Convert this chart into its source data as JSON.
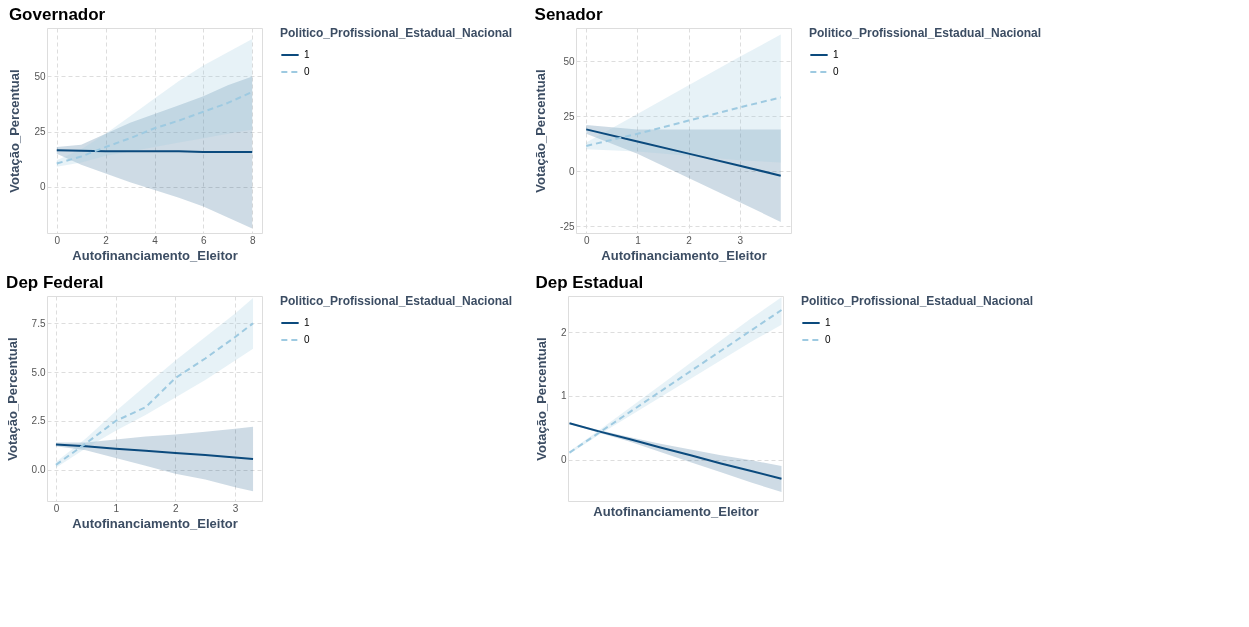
{
  "chart_data": [
    {
      "type": "line",
      "title": "Governador",
      "xlabel": "Autofinanciamento_Eleitor",
      "ylabel": "Votação_Percentual",
      "legend_title": "Politico_Profissional_Estadual_Nacional",
      "legend": "right",
      "grid": true,
      "xlim": [
        -0.4,
        8.4
      ],
      "xticks": [
        0,
        2,
        4,
        6,
        8
      ],
      "ylim": [
        -21,
        72
      ],
      "yticks": [
        0,
        25,
        50
      ],
      "x": [
        0,
        1,
        2,
        3,
        4,
        5,
        6,
        7,
        8
      ],
      "series": [
        {
          "name": "1",
          "color": "#0b4a7d",
          "line_style": "solid",
          "values": [
            16.5,
            16.3,
            16.1,
            16.1,
            16.1,
            16.1,
            15.8,
            15.8,
            15.8
          ],
          "lower": [
            15,
            10,
            6,
            2,
            -1.5,
            -5,
            -9,
            -14,
            -19
          ],
          "upper": [
            18,
            19,
            24,
            29,
            33,
            37,
            41,
            46,
            50
          ]
        },
        {
          "name": "0",
          "color": "#9ecae1",
          "line_style": "dashed",
          "values": [
            10.5,
            13.7,
            18,
            22,
            26.5,
            30,
            34,
            38,
            43
          ],
          "lower": [
            9,
            11,
            14,
            16,
            18,
            20,
            22,
            24,
            26
          ],
          "upper": [
            12,
            17,
            24,
            32,
            40,
            48,
            55,
            61,
            67
          ]
        }
      ]
    },
    {
      "type": "line",
      "title": "Senador",
      "xlabel": "Autofinanciamento_Eleitor",
      "ylabel": "Votação_Percentual",
      "legend_title": "Politico_Profissional_Estadual_Nacional",
      "legend": "right",
      "grid": true,
      "xlim": [
        -0.2,
        4.0
      ],
      "xticks": [
        0,
        1,
        2,
        3
      ],
      "ylim": [
        -28,
        65
      ],
      "yticks": [
        -25,
        0,
        25,
        50
      ],
      "x": [
        0,
        1,
        2,
        3,
        3.8
      ],
      "series": [
        {
          "name": "1",
          "color": "#0b4a7d",
          "line_style": "solid",
          "values": [
            19,
            13.5,
            8,
            2.5,
            -2
          ],
          "lower": [
            17,
            8,
            -3,
            -14,
            -23
          ],
          "upper": [
            21,
            19,
            19,
            19,
            19
          ]
        },
        {
          "name": "0",
          "color": "#9ecae1",
          "line_style": "dashed",
          "values": [
            11.5,
            17,
            23,
            29,
            33.5
          ],
          "lower": [
            10,
            9,
            7,
            5,
            4
          ],
          "upper": [
            13,
            26,
            39,
            52,
            62
          ]
        }
      ]
    },
    {
      "type": "line",
      "title": "Dep Federal",
      "xlabel": "Autofinanciamento_Eleitor",
      "ylabel": "Votação_Percentual",
      "legend_title": "Politico_Profissional_Estadual_Nacional",
      "legend": "right",
      "grid": true,
      "xlim": [
        -0.15,
        3.45
      ],
      "xticks": [
        0,
        1,
        2,
        3
      ],
      "ylim": [
        -1.6,
        8.9
      ],
      "yticks": [
        {
          "value": 0,
          "label": "0.0"
        },
        2.5,
        {
          "value": 5,
          "label": "5.0"
        },
        7.5
      ],
      "x": [
        0,
        0.5,
        1,
        1.5,
        2,
        2.5,
        3,
        3.3
      ],
      "series": [
        {
          "name": "1",
          "color": "#0b4a7d",
          "line_style": "solid",
          "values": [
            1.3,
            1.2,
            1.07,
            0.97,
            0.86,
            0.75,
            0.63,
            0.55
          ],
          "lower": [
            1.2,
            1.0,
            0.6,
            0.2,
            -0.2,
            -0.5,
            -0.9,
            -1.1
          ],
          "upper": [
            1.4,
            1.4,
            1.55,
            1.7,
            1.8,
            1.95,
            2.1,
            2.2
          ]
        },
        {
          "name": "0",
          "color": "#9ecae1",
          "line_style": "dashed",
          "values": [
            0.25,
            1.35,
            2.5,
            3.2,
            4.7,
            5.7,
            6.8,
            7.5
          ],
          "lower": [
            0.1,
            1.1,
            2.0,
            2.8,
            3.7,
            4.6,
            5.6,
            6.2
          ],
          "upper": [
            0.4,
            1.6,
            3.0,
            4.3,
            5.6,
            6.8,
            8.0,
            8.8
          ]
        }
      ]
    },
    {
      "type": "line",
      "title": "Dep Estadual",
      "xlabel": "Autofinanciamento_Eleitor",
      "ylabel": "Votação_Percentual",
      "legend_title": "Politico_Profissional_Estadual_Nacional",
      "legend": "right",
      "grid": "y",
      "ylim": [
        -0.65,
        2.57
      ],
      "yticks": [
        0,
        1,
        2
      ],
      "categories": [
        null,
        null,
        null,
        null,
        null,
        null,
        null,
        null
      ],
      "series": [
        {
          "name": "1",
          "color": "#0b4a7d",
          "line_style": "solid",
          "values": [
            0.57,
            0.44,
            0.32,
            0.19,
            0.07,
            -0.06,
            -0.18,
            -0.3
          ],
          "lower": [
            0.56,
            0.42,
            0.28,
            0.12,
            -0.04,
            -0.2,
            -0.36,
            -0.51
          ],
          "upper": [
            0.58,
            0.46,
            0.35,
            0.25,
            0.16,
            0.07,
            -0.01,
            -0.1
          ]
        },
        {
          "name": "0",
          "color": "#9ecae1",
          "line_style": "dashed",
          "values": [
            0.11,
            0.43,
            0.75,
            1.07,
            1.39,
            1.71,
            2.03,
            2.35
          ],
          "lower": [
            0.09,
            0.4,
            0.69,
            0.98,
            1.27,
            1.56,
            1.85,
            2.12
          ],
          "upper": [
            0.13,
            0.47,
            0.82,
            1.17,
            1.52,
            1.87,
            2.22,
            2.55
          ]
        }
      ]
    }
  ]
}
